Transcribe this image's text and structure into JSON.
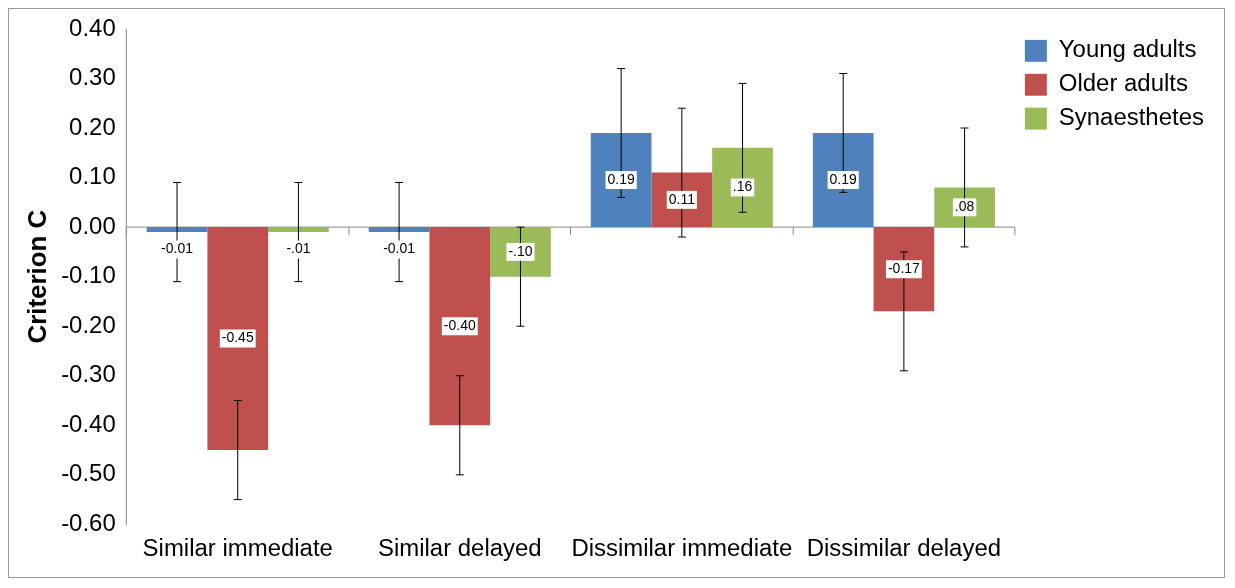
{
  "chart_data": {
    "type": "bar",
    "ylabel": "Criterion C",
    "categories": [
      "Similar immediate",
      "Similar delayed",
      "Dissimilar immediate",
      "Dissimilar delayed"
    ],
    "series": [
      {
        "name": "Young adults",
        "color": "#4f81bd",
        "values": [
          -0.01,
          -0.01,
          0.19,
          0.19
        ],
        "errors": [
          0.1,
          0.1,
          0.13,
          0.12
        ],
        "value_labels": [
          "-0.01",
          "-0.01",
          "0.19",
          "0.19"
        ]
      },
      {
        "name": "Older adults",
        "color": "#c0504d",
        "values": [
          -0.45,
          -0.4,
          0.11,
          -0.17
        ],
        "errors": [
          0.1,
          0.1,
          0.13,
          0.12
        ],
        "value_labels": [
          "-0.45",
          "-0.40",
          "0.11",
          "-0.17"
        ]
      },
      {
        "name": "Synaesthetes",
        "color": "#9bbb59",
        "values": [
          -0.01,
          -0.1,
          0.16,
          0.08
        ],
        "errors": [
          0.1,
          0.1,
          0.13,
          0.12
        ],
        "value_labels": [
          "-.01",
          "-.10",
          ".16",
          ".08"
        ]
      }
    ],
    "ylim": [
      -0.6,
      0.4
    ],
    "yticks": [
      {
        "value": -0.6,
        "label": "-0.60"
      },
      {
        "value": -0.5,
        "label": "-0.50"
      },
      {
        "value": -0.4,
        "label": "-0.40"
      },
      {
        "value": -0.3,
        "label": "-0.30"
      },
      {
        "value": -0.2,
        "label": "-0.20"
      },
      {
        "value": -0.1,
        "label": "-0.10"
      },
      {
        "value": 0,
        "label": "0.00"
      },
      {
        "value": 0.1,
        "label": "0.10"
      },
      {
        "value": 0.2,
        "label": "0.20"
      },
      {
        "value": 0.3,
        "label": "0.30"
      },
      {
        "value": 0.4,
        "label": "0.40"
      }
    ],
    "ref_lines": [
      {
        "axis": "y",
        "value": 0,
        "color": "#888888"
      }
    ],
    "legend": "top right",
    "grid": false
  }
}
